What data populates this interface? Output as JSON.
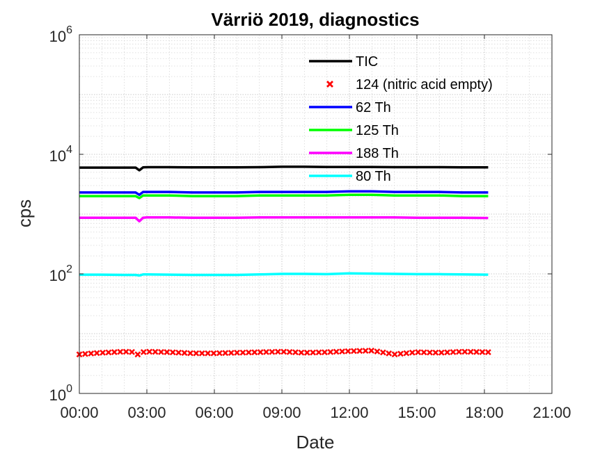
{
  "chart_data": {
    "type": "line",
    "title": "Värriö 2019, diagnostics",
    "xlabel": "Date",
    "ylabel": "cps",
    "y_scale": "log",
    "ylim": [
      1,
      1000000
    ],
    "xlim": [
      "00:00",
      "21:00"
    ],
    "x_ticks": [
      "00:00",
      "03:00",
      "06:00",
      "09:00",
      "12:00",
      "15:00",
      "18:00",
      "21:00"
    ],
    "y_ticks": [
      {
        "value": 1,
        "base": "10",
        "exp": "0"
      },
      {
        "value": 100,
        "base": "10",
        "exp": "2"
      },
      {
        "value": 10000,
        "base": "10",
        "exp": "4"
      },
      {
        "value": 1000000,
        "base": "10",
        "exp": "6"
      }
    ],
    "grid": true,
    "minor_grid": true,
    "legend_position": "top-right",
    "x": [
      "00:00",
      "01:00",
      "02:00",
      "02:30",
      "02:40",
      "02:50",
      "03:00",
      "04:00",
      "05:00",
      "06:00",
      "07:00",
      "08:00",
      "09:00",
      "10:00",
      "11:00",
      "12:00",
      "13:00",
      "14:00",
      "15:00",
      "16:00",
      "17:00",
      "18:10"
    ],
    "series": [
      {
        "name": "TIC",
        "color": "#000000",
        "style": "line",
        "values": [
          6000,
          6000,
          6000,
          6000,
          5400,
          6050,
          6100,
          6100,
          6050,
          6050,
          6050,
          6100,
          6200,
          6200,
          6150,
          6150,
          6150,
          6100,
          6100,
          6100,
          6050,
          6050
        ]
      },
      {
        "name": "124 (nitric acid empty)",
        "color": "#ff0000",
        "style": "marker",
        "values": [
          4.5,
          4.8,
          5.0,
          4.9,
          4.2,
          4.9,
          5.0,
          4.9,
          4.7,
          4.7,
          4.8,
          4.9,
          5.0,
          4.8,
          4.9,
          5.1,
          5.2,
          4.5,
          4.9,
          4.8,
          5.0,
          4.9
        ]
      },
      {
        "name": "62 Th",
        "color": "#0000ff",
        "style": "line",
        "values": [
          2300,
          2300,
          2300,
          2300,
          2100,
          2350,
          2350,
          2350,
          2300,
          2300,
          2300,
          2350,
          2350,
          2350,
          2350,
          2400,
          2400,
          2350,
          2350,
          2350,
          2300,
          2300
        ]
      },
      {
        "name": "125 Th",
        "color": "#00ff00",
        "style": "line",
        "values": [
          2000,
          2000,
          2000,
          2000,
          1850,
          2050,
          2050,
          2050,
          2000,
          2000,
          2000,
          2050,
          2050,
          2050,
          2050,
          2100,
          2100,
          2050,
          2050,
          2050,
          2000,
          2000
        ]
      },
      {
        "name": "188 Th",
        "color": "#ff00ff",
        "style": "line",
        "values": [
          870,
          870,
          870,
          870,
          760,
          870,
          880,
          880,
          870,
          870,
          870,
          880,
          880,
          880,
          880,
          880,
          880,
          880,
          870,
          870,
          870,
          860
        ]
      },
      {
        "name": "80 Th",
        "color": "#00ffff",
        "style": "line",
        "values": [
          97,
          97,
          96,
          96,
          94,
          98,
          98,
          97,
          96,
          96,
          96,
          98,
          100,
          100,
          99,
          102,
          101,
          100,
          99,
          99,
          98,
          97
        ]
      }
    ]
  }
}
